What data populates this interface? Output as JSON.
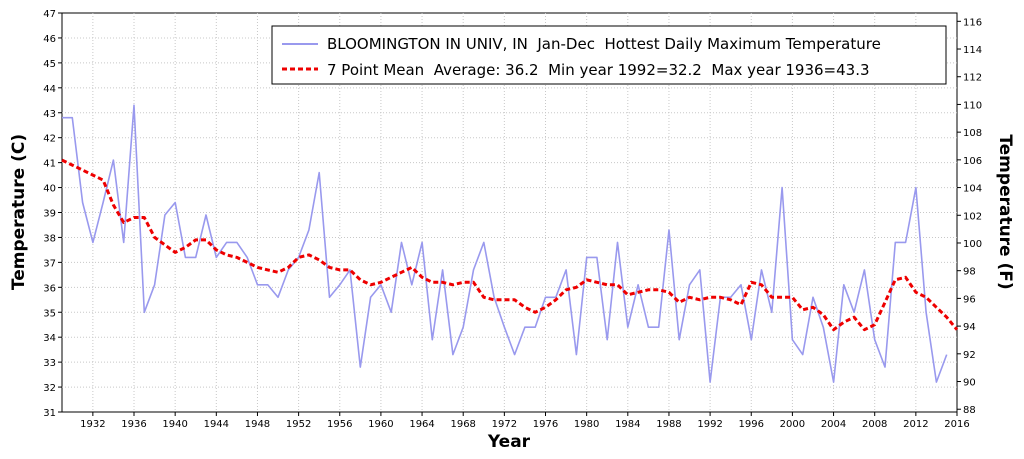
{
  "chart_data": {
    "type": "line",
    "xlabel": "Year",
    "ylabel_left": "Temperature (C)",
    "ylabel_right": "Temperature (F)",
    "xlim": [
      1929,
      2016
    ],
    "ylim": [
      31,
      47
    ],
    "ylim_right": [
      87.8,
      116.6
    ],
    "x_ticks": [
      1932,
      1936,
      1940,
      1944,
      1948,
      1952,
      1956,
      1960,
      1964,
      1968,
      1972,
      1976,
      1980,
      1984,
      1988,
      1992,
      1996,
      2000,
      2004,
      2008,
      2012,
      2016
    ],
    "y_ticks_left": [
      31,
      32,
      33,
      34,
      35,
      36,
      37,
      38,
      39,
      40,
      41,
      42,
      43,
      44,
      45,
      46,
      47
    ],
    "y_ticks_right": [
      88,
      90,
      92,
      94,
      96,
      98,
      100,
      102,
      104,
      106,
      108,
      110,
      112,
      114,
      116
    ],
    "grid": true,
    "legend_position": "top-right",
    "series": [
      {
        "name": "BLOOMINGTON IN UNIV, IN  Jan-Dec  Hottest Daily Maximum Temperature",
        "color": "#9999ee",
        "style": "solid",
        "x": [
          1929,
          1930,
          1931,
          1932,
          1933,
          1934,
          1935,
          1936,
          1937,
          1938,
          1939,
          1940,
          1941,
          1942,
          1943,
          1944,
          1945,
          1946,
          1947,
          1948,
          1949,
          1950,
          1951,
          1952,
          1953,
          1954,
          1955,
          1956,
          1957,
          1958,
          1959,
          1960,
          1961,
          1962,
          1963,
          1964,
          1965,
          1966,
          1967,
          1968,
          1969,
          1970,
          1971,
          1972,
          1973,
          1974,
          1975,
          1976,
          1977,
          1978,
          1979,
          1980,
          1981,
          1982,
          1983,
          1984,
          1985,
          1986,
          1987,
          1988,
          1989,
          1990,
          1991,
          1992,
          1993,
          1994,
          1995,
          1996,
          1997,
          1998,
          1999,
          2000,
          2001,
          2002,
          2003,
          2004,
          2005,
          2006,
          2007,
          2008,
          2009,
          2010,
          2011,
          2012,
          2013,
          2014,
          2015
        ],
        "y": [
          42.8,
          42.8,
          39.4,
          37.8,
          39.4,
          41.1,
          37.8,
          43.3,
          35.0,
          36.1,
          38.9,
          39.4,
          37.2,
          37.2,
          38.9,
          37.2,
          37.8,
          37.8,
          37.2,
          36.1,
          36.1,
          35.6,
          36.7,
          37.2,
          38.3,
          40.6,
          35.6,
          36.1,
          36.7,
          32.8,
          35.6,
          36.1,
          35.0,
          37.8,
          36.1,
          37.8,
          33.9,
          36.7,
          33.3,
          34.4,
          36.7,
          37.8,
          35.6,
          34.4,
          33.3,
          34.4,
          34.4,
          35.6,
          35.6,
          36.7,
          33.3,
          37.2,
          37.2,
          33.9,
          37.8,
          34.4,
          36.1,
          34.4,
          34.4,
          38.3,
          33.9,
          36.1,
          36.7,
          32.2,
          35.6,
          35.6,
          36.1,
          33.9,
          36.7,
          35.0,
          40.0,
          33.9,
          33.3,
          35.6,
          34.4,
          32.2,
          36.1,
          35.0,
          36.7,
          33.9,
          32.8,
          37.8,
          37.8,
          40.0,
          35.0,
          32.2,
          33.3
        ]
      },
      {
        "name": "7 Point Mean  Average: 36.2  Min year 1992=32.2  Max year 1936=43.3",
        "color": "#ee0000",
        "style": "dashed",
        "x": [
          1929,
          1930,
          1931,
          1932,
          1933,
          1934,
          1935,
          1936,
          1937,
          1938,
          1939,
          1940,
          1941,
          1942,
          1943,
          1944,
          1945,
          1946,
          1947,
          1948,
          1949,
          1950,
          1951,
          1952,
          1953,
          1954,
          1955,
          1956,
          1957,
          1958,
          1959,
          1960,
          1961,
          1962,
          1963,
          1964,
          1965,
          1966,
          1967,
          1968,
          1969,
          1970,
          1971,
          1972,
          1973,
          1974,
          1975,
          1976,
          1977,
          1978,
          1979,
          1980,
          1981,
          1982,
          1983,
          1984,
          1985,
          1986,
          1987,
          1988,
          1989,
          1990,
          1991,
          1992,
          1993,
          1994,
          1995,
          1996,
          1997,
          1998,
          1999,
          2000,
          2001,
          2002,
          2003,
          2004,
          2005,
          2006,
          2007,
          2008,
          2009,
          2010,
          2011,
          2012,
          2013,
          2014,
          2015,
          2016
        ],
        "y": [
          41.1,
          40.9,
          40.7,
          40.5,
          40.3,
          39.3,
          38.6,
          38.8,
          38.8,
          38.0,
          37.7,
          37.4,
          37.6,
          37.9,
          37.9,
          37.5,
          37.3,
          37.2,
          37.0,
          36.8,
          36.7,
          36.6,
          36.8,
          37.2,
          37.3,
          37.1,
          36.8,
          36.7,
          36.7,
          36.3,
          36.1,
          36.2,
          36.4,
          36.6,
          36.8,
          36.4,
          36.2,
          36.2,
          36.1,
          36.2,
          36.2,
          35.6,
          35.5,
          35.5,
          35.5,
          35.2,
          35.0,
          35.2,
          35.5,
          35.9,
          36.0,
          36.3,
          36.2,
          36.1,
          36.1,
          35.7,
          35.8,
          35.9,
          35.9,
          35.8,
          35.4,
          35.6,
          35.5,
          35.6,
          35.6,
          35.5,
          35.3,
          36.2,
          36.1,
          35.6,
          35.6,
          35.6,
          35.1,
          35.2,
          34.9,
          34.3,
          34.6,
          34.8,
          34.3,
          34.5,
          35.4,
          36.3,
          36.4,
          35.8,
          35.6,
          35.2,
          34.8,
          34.3
        ]
      }
    ]
  }
}
